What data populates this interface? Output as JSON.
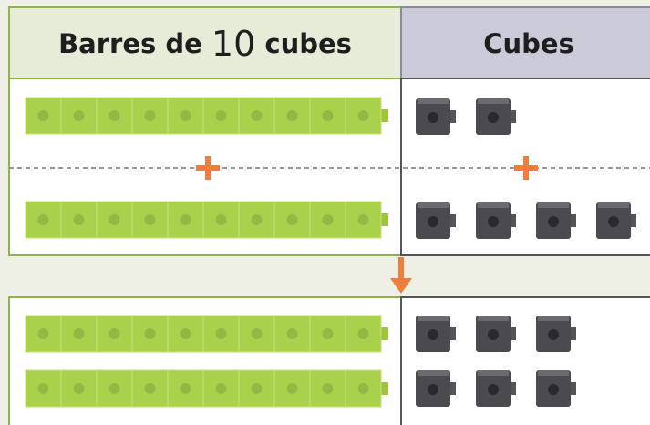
{
  "header": {
    "left": {
      "parts": [
        "Barres de",
        "10",
        "cubes"
      ]
    },
    "right": {
      "title": "Cubes"
    }
  }
}
